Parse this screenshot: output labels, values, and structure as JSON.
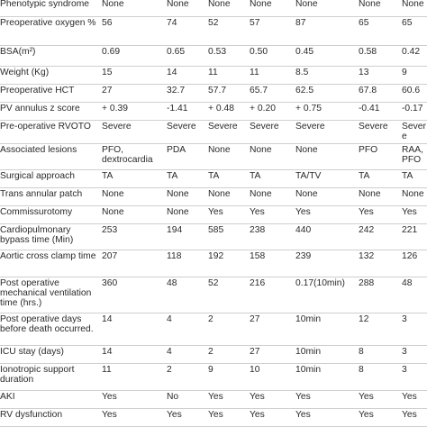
{
  "table": {
    "rows": [
      {
        "label": "Phenotypic syndrome",
        "values": [
          "None",
          "None",
          "None",
          "None",
          "None",
          "None",
          "None"
        ],
        "h": 20
      },
      {
        "label": "Preoperative oxygen %",
        "values": [
          "56",
          "74",
          "52",
          "57",
          "87",
          "65",
          "65"
        ],
        "h": 32
      },
      {
        "label": "BSA(m²)",
        "values": [
          "0.69",
          "0.65",
          "0.53",
          "0.50",
          "0.45",
          "0.58",
          "0.42"
        ],
        "h": 23
      },
      {
        "label": "Weight (Kg)",
        "values": [
          "15",
          "14",
          "11",
          "11",
          "8.5",
          "13",
          "9"
        ],
        "h": 20
      },
      {
        "label": "Preoperative HCT",
        "values": [
          "27",
          "32.7",
          "57.7",
          "65.7",
          "62.5",
          "67.8",
          "60.6"
        ],
        "h": 20
      },
      {
        "label": "PV annulus z score",
        "values": [
          "+ 0.39",
          "-1.41",
          "+ 0.48",
          "+ 0.20",
          "+ 0.75",
          "-0.41",
          "-0.17"
        ],
        "h": 20
      },
      {
        "label": "Pre-operative RVOTO",
        "values": [
          "Severe",
          "Severe",
          "Severe",
          "Severe",
          "Severe",
          "Severe",
          "Severe"
        ],
        "h": 20
      },
      {
        "label": "Associated lesions",
        "values": [
          "PFO, dextrocardia",
          "PDA",
          "None",
          "None",
          "None",
          "PFO",
          "RAA, PFO"
        ],
        "h": 29
      },
      {
        "label": "Surgical approach",
        "values": [
          "TA",
          "TA",
          "TA",
          "TA",
          "TA/TV",
          "TA",
          "TA"
        ],
        "h": 20
      },
      {
        "label": "Trans annular patch",
        "values": [
          "None",
          "None",
          "None",
          "None",
          "None",
          "None",
          "None"
        ],
        "h": 20
      },
      {
        "label": "Commissurotomy",
        "values": [
          "None",
          "None",
          "Yes",
          "Yes",
          "Yes",
          "Yes",
          "Yes"
        ],
        "h": 20
      },
      {
        "label": "Cardiopulmonary bypass time (Min)",
        "values": [
          "253",
          "194",
          "585",
          "238",
          "440",
          "242",
          "221"
        ],
        "h": 29
      },
      {
        "label": "Aortic cross clamp time",
        "values": [
          "207",
          "118",
          "192",
          "158",
          "239",
          "132",
          "126"
        ],
        "h": 30
      },
      {
        "label": "Post operative mechanical ventilation time (hrs.)",
        "values": [
          "360",
          "48",
          "52",
          "216",
          "0.17(10min)",
          "288",
          "48"
        ],
        "h": 40
      },
      {
        "label": "Post operative days before death occurred.",
        "values": [
          "14",
          "4",
          "2",
          "27",
          "10min",
          "12",
          "3"
        ],
        "h": 36
      },
      {
        "label": "ICU stay (days)",
        "values": [
          "14",
          "4",
          "2",
          "27",
          "10min",
          "8",
          "3"
        ],
        "h": 20
      },
      {
        "label": "Ionotropic support duration",
        "values": [
          "11",
          "2",
          "9",
          "10",
          "10min",
          "8",
          "3"
        ],
        "h": 30
      },
      {
        "label": "AKI",
        "values": [
          "Yes",
          "No",
          "Yes",
          "Yes",
          "Yes",
          "Yes",
          "Yes"
        ],
        "h": 20
      },
      {
        "label": "RV dysfunction",
        "values": [
          "Yes",
          "Yes",
          "Yes",
          "Yes",
          "Yes",
          "Yes",
          "Yes"
        ],
        "h": 20
      }
    ]
  }
}
